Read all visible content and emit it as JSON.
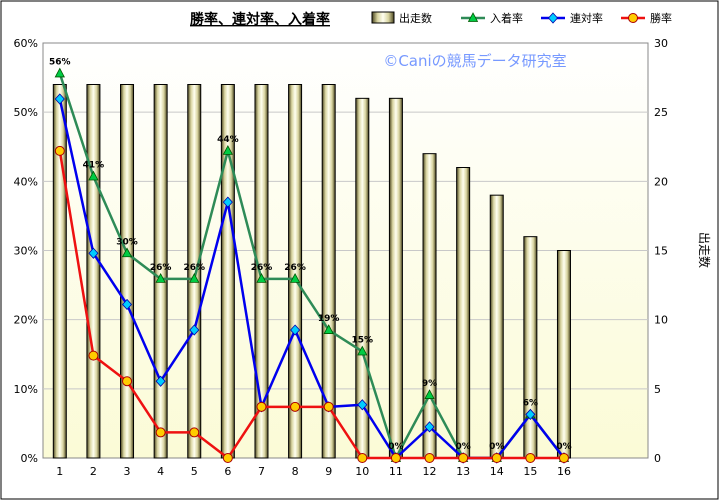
{
  "chart_data": {
    "type": "bar",
    "title": "勝率、連対率、入着率",
    "watermark": "©Caniの競馬データ研究室",
    "categories": [
      "1",
      "2",
      "3",
      "4",
      "5",
      "6",
      "7",
      "8",
      "9",
      "10",
      "11",
      "12",
      "13",
      "14",
      "15",
      "16"
    ],
    "y_left": {
      "min": 0,
      "max": 60,
      "step": 10,
      "unit": "%"
    },
    "y_right": {
      "min": 0,
      "max": 30,
      "step": 5,
      "label": "出走数"
    },
    "bar_series": {
      "name": "出走数",
      "axis": "right",
      "values": [
        27,
        27,
        27,
        27,
        27,
        27,
        27,
        27,
        27,
        26,
        26,
        22,
        21,
        19,
        16,
        15
      ]
    },
    "line_series": [
      {
        "name": "入着率",
        "axis": "left",
        "color": "#2e8b57",
        "marker": "triangle",
        "marker_fill": "#00cc44",
        "values": [
          55.6,
          40.7,
          29.6,
          25.9,
          25.9,
          44.4,
          25.9,
          25.9,
          18.5,
          15.4,
          0,
          9.1,
          0,
          0,
          6.3,
          0
        ],
        "data_labels": [
          "56%",
          "41%",
          "30%",
          "26%",
          "26%",
          "44%",
          "26%",
          "26%",
          "19%",
          "15%",
          "0%",
          "9%",
          "0%",
          "0%",
          "6%",
          "0%"
        ]
      },
      {
        "name": "連対率",
        "axis": "left",
        "color": "#0000ee",
        "marker": "diamond",
        "marker_fill": "#00ccff",
        "values": [
          51.9,
          29.6,
          22.2,
          11.1,
          18.5,
          37.0,
          7.4,
          18.5,
          7.4,
          7.7,
          0,
          4.5,
          0,
          0,
          6.3,
          0
        ]
      },
      {
        "name": "勝率",
        "axis": "left",
        "color": "#ee1111",
        "marker": "circle",
        "marker_fill": "#ffcc00",
        "values": [
          44.4,
          14.8,
          11.1,
          3.7,
          3.7,
          0,
          7.4,
          7.4,
          7.4,
          0,
          0,
          0,
          0,
          0,
          0,
          0
        ]
      }
    ],
    "legend_position": "top-right",
    "grid": "horizontal"
  }
}
